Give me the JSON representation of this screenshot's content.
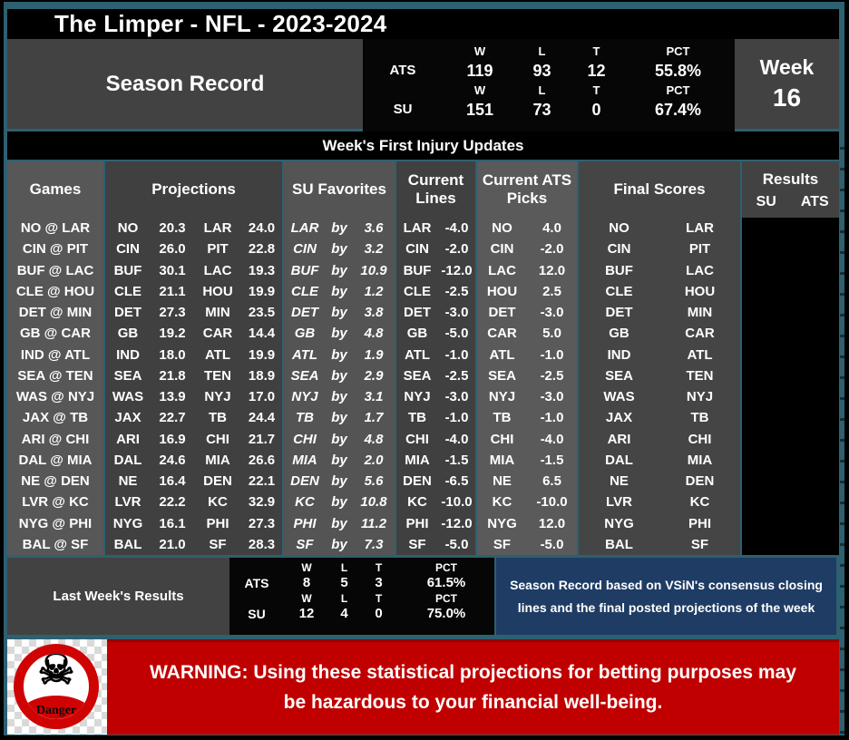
{
  "title": "The Limper - NFL - 2023-2024",
  "season_record": {
    "label": "Season Record",
    "week_label": "Week",
    "week_number": "16",
    "col_headers": {
      "w": "W",
      "l": "L",
      "t": "T",
      "pct": "PCT"
    },
    "ats": {
      "label": "ATS",
      "w": "119",
      "l": "93",
      "t": "12",
      "pct": "55.8%"
    },
    "su": {
      "label": "SU",
      "w": "151",
      "l": "73",
      "t": "0",
      "pct": "67.4%"
    }
  },
  "injury_banner": "Week's First Injury Updates",
  "table": {
    "headers": {
      "games": "Games",
      "projections": "Projections",
      "su_favorites": "SU Favorites",
      "current_lines": "Current Lines",
      "current_ats_picks": "Current ATS Picks",
      "final_scores": "Final Scores",
      "results": "Results",
      "results_su": "SU",
      "results_ats": "ATS"
    },
    "rows": [
      {
        "game": "NO @ LAR",
        "away": "NO",
        "away_proj": "20.3",
        "home": "LAR",
        "home_proj": "24.0",
        "fav": "LAR",
        "by": "by",
        "margin": "3.6",
        "line_team": "LAR",
        "line": "-4.0",
        "pick_team": "NO",
        "pick_line": "4.0",
        "fs_away": "NO",
        "fs_home": "LAR"
      },
      {
        "game": "CIN @ PIT",
        "away": "CIN",
        "away_proj": "26.0",
        "home": "PIT",
        "home_proj": "22.8",
        "fav": "CIN",
        "by": "by",
        "margin": "3.2",
        "line_team": "CIN",
        "line": "-2.0",
        "pick_team": "CIN",
        "pick_line": "-2.0",
        "fs_away": "CIN",
        "fs_home": "PIT"
      },
      {
        "game": "BUF @ LAC",
        "away": "BUF",
        "away_proj": "30.1",
        "home": "LAC",
        "home_proj": "19.3",
        "fav": "BUF",
        "by": "by",
        "margin": "10.9",
        "line_team": "BUF",
        "line": "-12.0",
        "pick_team": "LAC",
        "pick_line": "12.0",
        "fs_away": "BUF",
        "fs_home": "LAC"
      },
      {
        "game": "CLE @ HOU",
        "away": "CLE",
        "away_proj": "21.1",
        "home": "HOU",
        "home_proj": "19.9",
        "fav": "CLE",
        "by": "by",
        "margin": "1.2",
        "line_team": "CLE",
        "line": "-2.5",
        "pick_team": "HOU",
        "pick_line": "2.5",
        "fs_away": "CLE",
        "fs_home": "HOU"
      },
      {
        "game": "DET @ MIN",
        "away": "DET",
        "away_proj": "27.3",
        "home": "MIN",
        "home_proj": "23.5",
        "fav": "DET",
        "by": "by",
        "margin": "3.8",
        "line_team": "DET",
        "line": "-3.0",
        "pick_team": "DET",
        "pick_line": "-3.0",
        "fs_away": "DET",
        "fs_home": "MIN"
      },
      {
        "game": "GB @ CAR",
        "away": "GB",
        "away_proj": "19.2",
        "home": "CAR",
        "home_proj": "14.4",
        "fav": "GB",
        "by": "by",
        "margin": "4.8",
        "line_team": "GB",
        "line": "-5.0",
        "pick_team": "CAR",
        "pick_line": "5.0",
        "fs_away": "GB",
        "fs_home": "CAR"
      },
      {
        "game": "IND @ ATL",
        "away": "IND",
        "away_proj": "18.0",
        "home": "ATL",
        "home_proj": "19.9",
        "fav": "ATL",
        "by": "by",
        "margin": "1.9",
        "line_team": "ATL",
        "line": "-1.0",
        "pick_team": "ATL",
        "pick_line": "-1.0",
        "fs_away": "IND",
        "fs_home": "ATL"
      },
      {
        "game": "SEA @ TEN",
        "away": "SEA",
        "away_proj": "21.8",
        "home": "TEN",
        "home_proj": "18.9",
        "fav": "SEA",
        "by": "by",
        "margin": "2.9",
        "line_team": "SEA",
        "line": "-2.5",
        "pick_team": "SEA",
        "pick_line": "-2.5",
        "fs_away": "SEA",
        "fs_home": "TEN"
      },
      {
        "game": "WAS @ NYJ",
        "away": "WAS",
        "away_proj": "13.9",
        "home": "NYJ",
        "home_proj": "17.0",
        "fav": "NYJ",
        "by": "by",
        "margin": "3.1",
        "line_team": "NYJ",
        "line": "-3.0",
        "pick_team": "NYJ",
        "pick_line": "-3.0",
        "fs_away": "WAS",
        "fs_home": "NYJ"
      },
      {
        "game": "JAX @ TB",
        "away": "JAX",
        "away_proj": "22.7",
        "home": "TB",
        "home_proj": "24.4",
        "fav": "TB",
        "by": "by",
        "margin": "1.7",
        "line_team": "TB",
        "line": "-1.0",
        "pick_team": "TB",
        "pick_line": "-1.0",
        "fs_away": "JAX",
        "fs_home": "TB"
      },
      {
        "game": "ARI @ CHI",
        "away": "ARI",
        "away_proj": "16.9",
        "home": "CHI",
        "home_proj": "21.7",
        "fav": "CHI",
        "by": "by",
        "margin": "4.8",
        "line_team": "CHI",
        "line": "-4.0",
        "pick_team": "CHI",
        "pick_line": "-4.0",
        "fs_away": "ARI",
        "fs_home": "CHI"
      },
      {
        "game": "DAL @ MIA",
        "away": "DAL",
        "away_proj": "24.6",
        "home": "MIA",
        "home_proj": "26.6",
        "fav": "MIA",
        "by": "by",
        "margin": "2.0",
        "line_team": "MIA",
        "line": "-1.5",
        "pick_team": "MIA",
        "pick_line": "-1.5",
        "fs_away": "DAL",
        "fs_home": "MIA"
      },
      {
        "game": "NE @ DEN",
        "away": "NE",
        "away_proj": "16.4",
        "home": "DEN",
        "home_proj": "22.1",
        "fav": "DEN",
        "by": "by",
        "margin": "5.6",
        "line_team": "DEN",
        "line": "-6.5",
        "pick_team": "NE",
        "pick_line": "6.5",
        "fs_away": "NE",
        "fs_home": "DEN"
      },
      {
        "game": "LVR @ KC",
        "away": "LVR",
        "away_proj": "22.2",
        "home": "KC",
        "home_proj": "32.9",
        "fav": "KC",
        "by": "by",
        "margin": "10.8",
        "line_team": "KC",
        "line": "-10.0",
        "pick_team": "KC",
        "pick_line": "-10.0",
        "fs_away": "LVR",
        "fs_home": "KC"
      },
      {
        "game": "NYG @ PHI",
        "away": "NYG",
        "away_proj": "16.1",
        "home": "PHI",
        "home_proj": "27.3",
        "fav": "PHI",
        "by": "by",
        "margin": "11.2",
        "line_team": "PHI",
        "line": "-12.0",
        "pick_team": "NYG",
        "pick_line": "12.0",
        "fs_away": "NYG",
        "fs_home": "PHI"
      },
      {
        "game": "BAL @ SF",
        "away": "BAL",
        "away_proj": "21.0",
        "home": "SF",
        "home_proj": "28.3",
        "fav": "SF",
        "by": "by",
        "margin": "7.3",
        "line_team": "SF",
        "line": "-5.0",
        "pick_team": "SF",
        "pick_line": "-5.0",
        "fs_away": "BAL",
        "fs_home": "SF"
      }
    ]
  },
  "last_week": {
    "label": "Last Week's Results",
    "col_headers": {
      "w": "W",
      "l": "L",
      "t": "T",
      "pct": "PCT"
    },
    "ats": {
      "label": "ATS",
      "w": "8",
      "l": "5",
      "t": "3",
      "pct": "61.5%"
    },
    "su": {
      "label": "SU",
      "w": "12",
      "l": "4",
      "t": "0",
      "pct": "75.0%"
    }
  },
  "info_box": "Season Record based on VSiN's consensus closing lines and the final posted projections of the week",
  "warning": {
    "icon_label": "Danger",
    "text": "WARNING: Using these statistical projections for betting purposes may be hazardous to your financial well-being."
  },
  "colors": {
    "background_teal": "#2d6070",
    "frame_black": "#000000",
    "panel_gray": "#424242",
    "stats_black": "#060606",
    "col_games": "#575757",
    "col_projections": "#404040",
    "col_su_favorites": "#545454",
    "col_current_lines": "#404040",
    "col_ats_picks": "#5a5a5a",
    "col_final_scores": "#454545",
    "results_black": "#000000",
    "info_blue": "#1f3c64",
    "warning_red": "#c00000",
    "danger_red": "#d00303"
  }
}
